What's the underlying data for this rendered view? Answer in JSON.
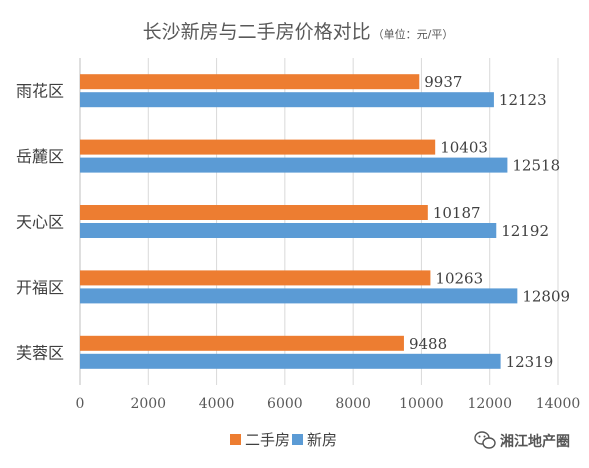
{
  "chart_data": {
    "type": "bar",
    "orientation": "horizontal",
    "title": "长沙新房与二手房价格对比",
    "unit_note": "（单位：元/平）",
    "categories": [
      "雨花区",
      "岳麓区",
      "天心区",
      "开福区",
      "芙蓉区"
    ],
    "series": [
      {
        "name": "二手房",
        "color": "#ED7D31",
        "values": [
          9937,
          10403,
          10187,
          10263,
          9488
        ]
      },
      {
        "name": "新房",
        "color": "#5B9BD5",
        "values": [
          12123,
          12518,
          12192,
          12809,
          12319
        ]
      }
    ],
    "xlim": [
      0,
      14000
    ],
    "xticks": [
      "0",
      "2000",
      "4000",
      "6000",
      "8000",
      "10000",
      "12000",
      "14000"
    ],
    "grid": true,
    "legend_position": "bottom"
  },
  "watermark": {
    "text": "湘江地产圈",
    "icon": "wechat-icon"
  }
}
